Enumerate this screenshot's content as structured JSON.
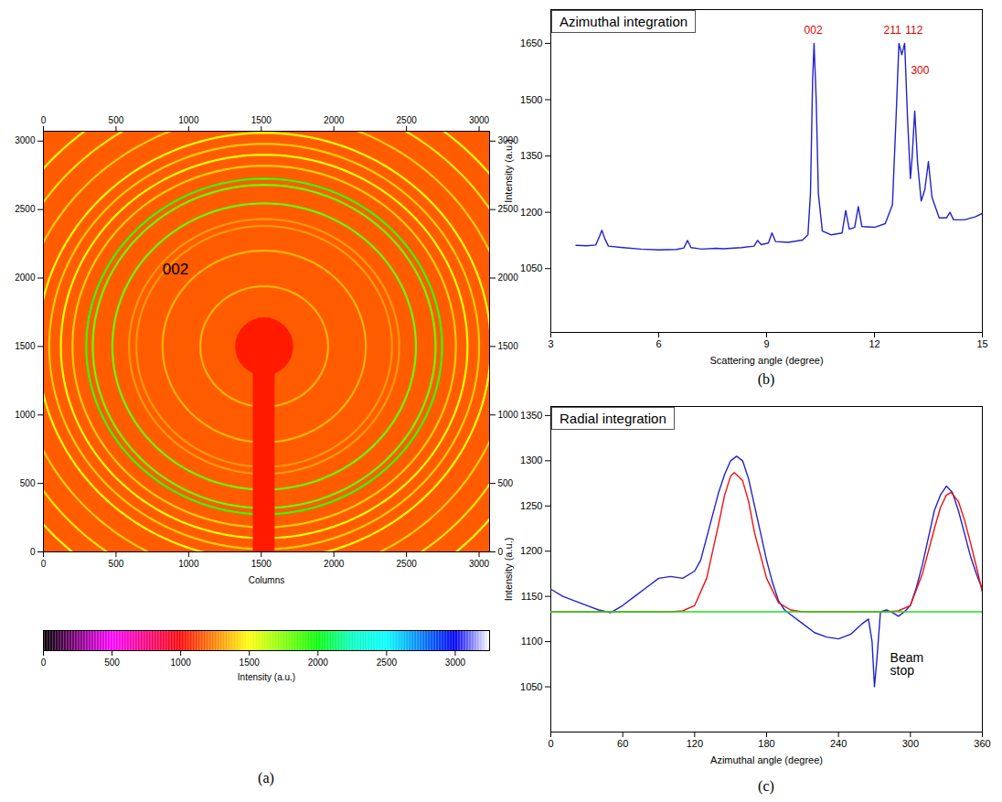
{
  "chart_data": [
    {
      "type": "image",
      "caption": "(a)",
      "xlabel": "Columns",
      "xlim": [
        0,
        3072
      ],
      "ylim": [
        0,
        3072
      ],
      "xticks": [
        0,
        500,
        1000,
        1500,
        2000,
        2500,
        3000
      ],
      "yticks": [
        0,
        500,
        1000,
        1500,
        2000,
        2500,
        3000
      ],
      "background": 1180,
      "center": [
        1520,
        1500
      ],
      "rings": [
        {
          "radius": 440,
          "intensity": 1350
        },
        {
          "radius": 700,
          "intensity": 1350
        },
        {
          "radius": 880,
          "intensity": 1300
        },
        {
          "radius": 930,
          "intensity": 1300
        },
        {
          "radius": 1045,
          "intensity": 1800
        },
        {
          "radius": 1180,
          "intensity": 1800
        },
        {
          "radius": 1225,
          "intensity": 1900
        },
        {
          "radius": 1320,
          "intensity": 1400
        },
        {
          "radius": 1400,
          "intensity": 1500
        },
        {
          "radius": 1480,
          "intensity": 1400
        },
        {
          "radius": 1560,
          "intensity": 1500
        },
        {
          "radius": 1700,
          "intensity": 1400
        },
        {
          "radius": 1850,
          "intensity": 1450
        },
        {
          "radius": 2000,
          "intensity": 1500
        }
      ],
      "beam_stop": {
        "radius": 200,
        "arm_width": 150,
        "intensity": 1050
      },
      "annotations": [
        {
          "text": "002",
          "x": 820,
          "y": 2060
        }
      ],
      "colorbar": {
        "label": "Intensity (a.u.)",
        "range": [
          0,
          3250
        ],
        "ticks": [
          0,
          500,
          1000,
          1500,
          2000,
          2500,
          3000
        ]
      }
    },
    {
      "type": "line",
      "title": "Azimuthal integration",
      "caption": "(b)",
      "xlabel": "Scattering angle (degree)",
      "ylabel": "Intensity (a.u.)",
      "xlim": [
        3,
        15
      ],
      "ylim": [
        880,
        1740
      ],
      "xticks": [
        3,
        6,
        9,
        12,
        15
      ],
      "yticks": [
        1050,
        1200,
        1350,
        1500,
        1650
      ],
      "color": "#2222cc",
      "x": [
        3.7,
        4.0,
        4.25,
        4.35,
        4.42,
        4.5,
        4.6,
        5.0,
        5.5,
        6.0,
        6.5,
        6.7,
        6.8,
        6.9,
        7.2,
        7.6,
        7.8,
        8.3,
        8.65,
        8.75,
        8.85,
        9.05,
        9.15,
        9.25,
        9.6,
        10.0,
        10.15,
        10.22,
        10.28,
        10.32,
        10.38,
        10.44,
        10.55,
        10.8,
        11.1,
        11.2,
        11.3,
        11.45,
        11.55,
        11.65,
        12.0,
        12.3,
        12.5,
        12.6,
        12.68,
        12.76,
        12.84,
        12.92,
        13.0,
        13.05,
        13.12,
        13.2,
        13.3,
        13.4,
        13.5,
        13.6,
        13.8,
        14.0,
        14.1,
        14.2,
        14.5,
        14.8,
        15.0
      ],
      "values": [
        1112,
        1111,
        1113,
        1135,
        1152,
        1130,
        1110,
        1106,
        1102,
        1100,
        1101,
        1105,
        1125,
        1106,
        1102,
        1104,
        1103,
        1106,
        1110,
        1125,
        1114,
        1118,
        1145,
        1122,
        1120,
        1126,
        1140,
        1250,
        1550,
        1650,
        1500,
        1250,
        1150,
        1140,
        1145,
        1205,
        1155,
        1160,
        1215,
        1162,
        1160,
        1170,
        1220,
        1450,
        1650,
        1620,
        1650,
        1450,
        1290,
        1350,
        1470,
        1330,
        1230,
        1260,
        1335,
        1240,
        1185,
        1185,
        1200,
        1180,
        1180,
        1188,
        1197
      ],
      "annotations": [
        {
          "text": "002",
          "x": 10.3,
          "y": 1685
        },
        {
          "text": "211",
          "x": 12.5,
          "y": 1685
        },
        {
          "text": "112",
          "x": 13.1,
          "y": 1685
        },
        {
          "text": "300",
          "x": 13.27,
          "y": 1578
        }
      ]
    },
    {
      "type": "line",
      "title": "Radial integration",
      "caption": "(c)",
      "xlabel": "Azimuthal angle (degree)",
      "ylabel": "Intensity (a.u.)",
      "xlim": [
        0,
        360
      ],
      "ylim": [
        1000,
        1360
      ],
      "xticks": [
        0,
        60,
        120,
        180,
        240,
        300,
        360
      ],
      "yticks": [
        1050,
        1100,
        1150,
        1200,
        1250,
        1300,
        1350
      ],
      "series": [
        {
          "color": "#2222cc",
          "x": [
            0,
            10,
            20,
            30,
            40,
            50,
            60,
            70,
            80,
            90,
            100,
            110,
            120,
            125,
            130,
            135,
            140,
            145,
            150,
            155,
            160,
            165,
            170,
            175,
            180,
            185,
            190,
            195,
            200,
            210,
            220,
            230,
            240,
            250,
            260,
            265,
            268,
            270,
            272,
            275,
            280,
            285,
            290,
            295,
            300,
            305,
            310,
            315,
            320,
            325,
            330,
            335,
            340,
            345,
            350,
            355,
            360
          ],
          "values": [
            1158,
            1150,
            1145,
            1140,
            1135,
            1132,
            1140,
            1150,
            1160,
            1170,
            1172,
            1170,
            1178,
            1190,
            1215,
            1240,
            1265,
            1285,
            1300,
            1305,
            1300,
            1280,
            1250,
            1220,
            1190,
            1165,
            1145,
            1135,
            1130,
            1120,
            1110,
            1105,
            1103,
            1108,
            1120,
            1125,
            1100,
            1050,
            1080,
            1133,
            1135,
            1132,
            1128,
            1133,
            1140,
            1160,
            1185,
            1215,
            1245,
            1262,
            1272,
            1265,
            1245,
            1220,
            1195,
            1175,
            1158
          ]
        },
        {
          "color": "#ee1111",
          "x": [
            0,
            100,
            110,
            120,
            130,
            140,
            145,
            150,
            153,
            160,
            165,
            170,
            180,
            190,
            200,
            210,
            280,
            290,
            300,
            310,
            320,
            325,
            330,
            334,
            340,
            345,
            350,
            355,
            360
          ],
          "values": [
            1133,
            1133,
            1134,
            1140,
            1170,
            1230,
            1262,
            1283,
            1287,
            1278,
            1255,
            1220,
            1170,
            1143,
            1135,
            1133,
            1133,
            1134,
            1140,
            1175,
            1225,
            1248,
            1262,
            1265,
            1255,
            1235,
            1210,
            1183,
            1155
          ]
        },
        {
          "color": "#22dd22",
          "x": [
            0,
            360
          ],
          "values": [
            1133,
            1133
          ]
        }
      ],
      "annotations": [
        {
          "text": "Beam stop",
          "x": 283,
          "y": 1075
        }
      ]
    }
  ]
}
